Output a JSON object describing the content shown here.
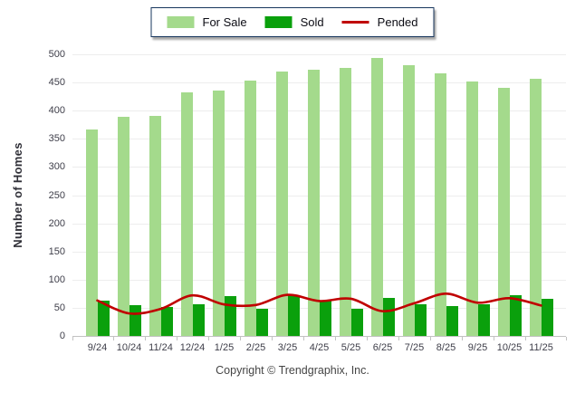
{
  "footer": "Copyright © Trendgraphix, Inc.",
  "colors": {
    "background": "#ffffff",
    "grid": "#ededed",
    "axis": "#c2c2c2",
    "tick_text": "#3e3e49",
    "legend_border": "#17365d",
    "footer_text": "#454545"
  },
  "chart_data": {
    "type": "bar",
    "title": "",
    "categories": [
      "9/24",
      "10/24",
      "11/24",
      "12/24",
      "1/25",
      "2/25",
      "3/25",
      "4/25",
      "5/25",
      "6/25",
      "7/25",
      "8/25",
      "9/25",
      "10/25",
      "11/25"
    ],
    "series": [
      {
        "name": "For Sale",
        "type": "bar",
        "color": "#a4da8c",
        "values": [
          366,
          389,
          391,
          433,
          436,
          453,
          469,
          472,
          476,
          493,
          481,
          467,
          452,
          441,
          456
        ]
      },
      {
        "name": "Sold",
        "type": "bar",
        "color": "#0aa00c",
        "values": [
          62,
          55,
          51,
          57,
          70,
          49,
          73,
          62,
          48,
          67,
          57,
          53,
          56,
          72,
          66
        ]
      },
      {
        "name": "Pended",
        "type": "line",
        "color": "#c00000",
        "values": [
          63,
          40,
          48,
          72,
          56,
          55,
          73,
          62,
          66,
          44,
          58,
          75,
          59,
          67,
          54
        ]
      }
    ],
    "xlabel": "",
    "ylabel": "Number of Homes",
    "ylim": [
      0,
      500
    ],
    "yticks": [
      0,
      50,
      100,
      150,
      200,
      250,
      300,
      350,
      400,
      450,
      500
    ],
    "grid": true,
    "legend_position": "top-center"
  }
}
